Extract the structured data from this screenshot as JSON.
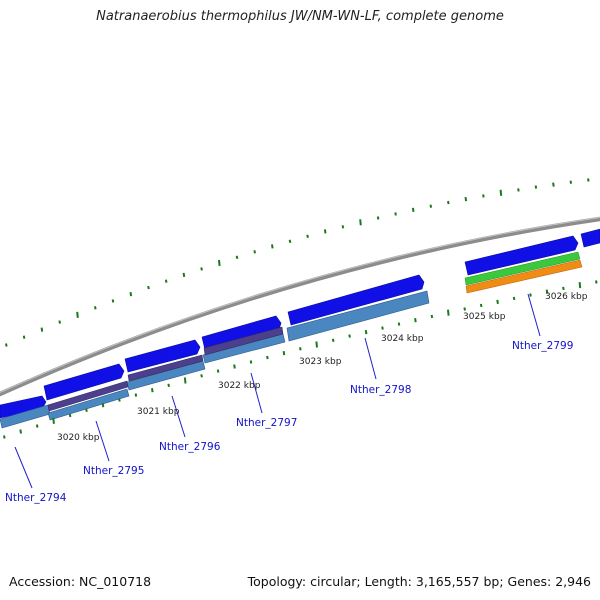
{
  "title": "Natranaerobius thermophilus JW/NM-WN-LF, complete genome",
  "footer": {
    "accession": "Accession: NC_010718",
    "summary": "Topology: circular; Length: 3,165,557 bp; Genes: 2,946"
  },
  "colors": {
    "backbone": "#8c8c8c",
    "cds_forward": "#1010e6",
    "gene_track": "#4a86c0",
    "rna_track": "#4c3f8c",
    "trna_green": "#3cc83c",
    "trna_orange": "#f08c14",
    "gc_ticks": "#1a7a1a",
    "label_text": "#1212c8"
  },
  "scale_labels": [
    "3020 kbp",
    "3021 kbp",
    "3022 kbp",
    "3023 kbp",
    "3024 kbp",
    "3025 kbp",
    "3026 kbp"
  ],
  "gene_labels": [
    "Nther_2794",
    "Nther_2795",
    "Nther_2796",
    "Nther_2797",
    "Nther_2798",
    "Nther_2799"
  ]
}
